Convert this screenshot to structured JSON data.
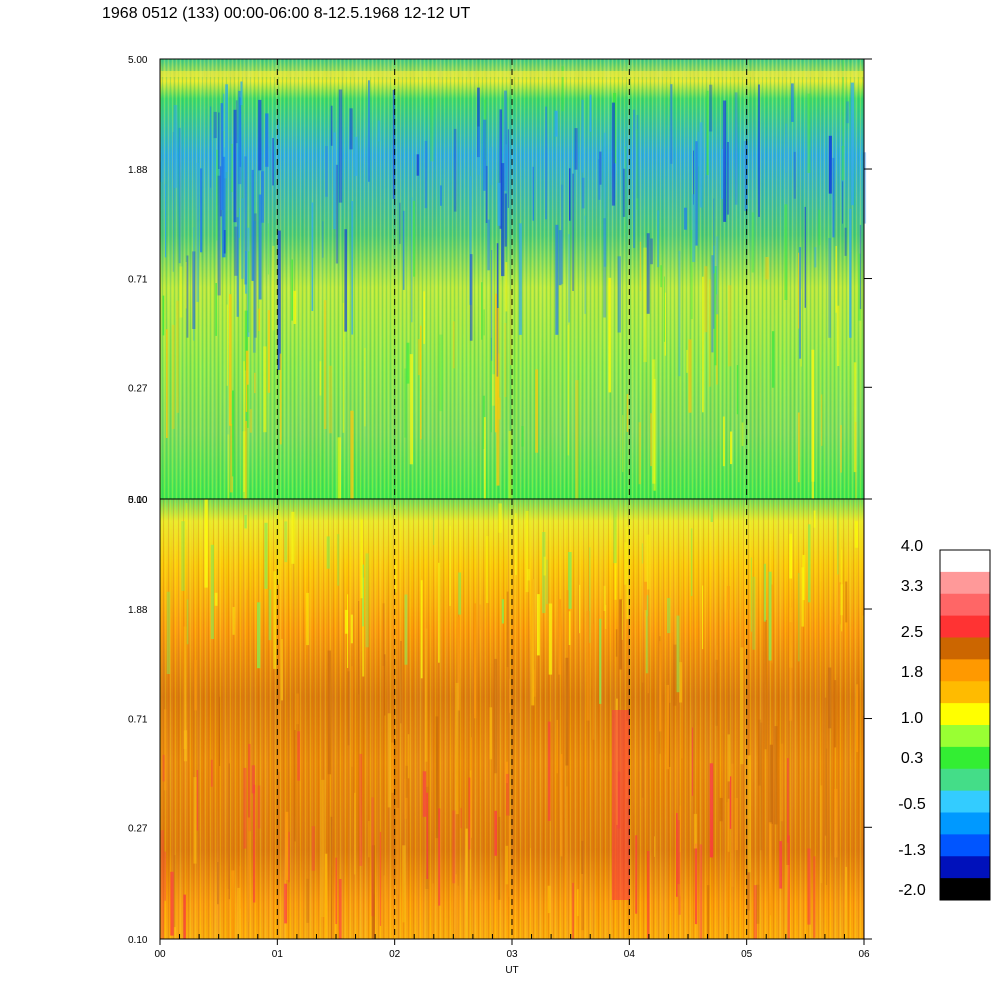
{
  "title": "1968 0512 (133) 00:00-06:00 8-12.5.1968  12-12 UT",
  "chart_data": {
    "type": "heatmap",
    "xlabel": "UT",
    "x_ticks": [
      "00",
      "01",
      "02",
      "03",
      "04",
      "05",
      "06"
    ],
    "x_range": [
      0,
      6
    ],
    "dashed_vertical_lines_at": [
      1,
      2,
      3,
      4,
      5
    ],
    "panels": [
      {
        "name": "top",
        "y_ticks": [
          "5.00",
          "1.88",
          "0.71",
          "0.27",
          "0.10"
        ],
        "y_range": [
          0.1,
          5.0
        ],
        "y_scale": "log",
        "dominant_range": "blue-green-yellow"
      },
      {
        "name": "bottom",
        "y_ticks": [
          "5.00",
          "1.88",
          "0.71",
          "0.27",
          "0.10"
        ],
        "y_range": [
          0.1,
          5.0
        ],
        "y_scale": "log",
        "dominant_range": "yellow-orange-red"
      }
    ],
    "colorbar": {
      "labels": [
        "4.0",
        "3.3",
        "2.5",
        "1.8",
        "1.0",
        "0.3",
        "-0.5",
        "-1.3",
        "-2.0"
      ],
      "range": [
        -2.0,
        4.0
      ],
      "colors_top_to_bottom": [
        "#ffffff",
        "#ff9999",
        "#ff6666",
        "#ff3333",
        "#cc6600",
        "#ff9900",
        "#ffbb00",
        "#ffff00",
        "#99ff33",
        "#33ee33",
        "#44dd88",
        "#33ccff",
        "#0099ff",
        "#0055ff",
        "#0011bb",
        "#000000"
      ]
    }
  }
}
